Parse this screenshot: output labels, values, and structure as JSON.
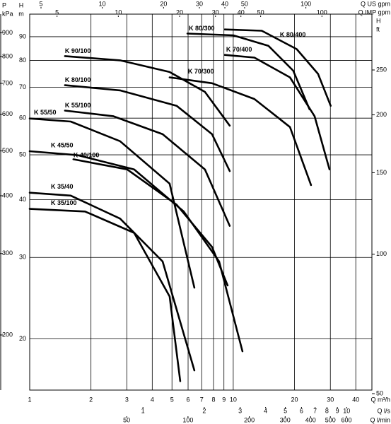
{
  "chart_data": {
    "type": "line",
    "x_label": "Q m³/h",
    "y_label": [
      "H",
      "m"
    ],
    "log_x": true,
    "log_y": true,
    "grid": true,
    "xlim": [
      1,
      48
    ],
    "ylim": [
      15.5,
      100.7
    ],
    "xticks": [
      1,
      2,
      3,
      4,
      5,
      6,
      7,
      8,
      9,
      10,
      20,
      30,
      40
    ],
    "yticks": [
      20,
      30,
      40,
      50,
      60,
      70,
      80,
      90
    ],
    "color": "#000000",
    "series": [
      {
        "name": "K 90/100",
        "x": [
          1.49,
          2.78,
          4.87,
          7.26,
          9.61
        ],
        "values": [
          81.7,
          80.0,
          75.5,
          68.4,
          57.8
        ]
      },
      {
        "name": "K 80/100",
        "x": [
          1.49,
          2.78,
          5.27,
          7.87,
          9.61
        ],
        "values": [
          70.7,
          68.9,
          63.8,
          55.4,
          46.1
        ]
      },
      {
        "name": "K 55/100",
        "x": [
          1.49,
          2.57,
          4.5,
          7.26,
          9.61
        ],
        "values": [
          62.3,
          60.6,
          55.4,
          46.5,
          35.1
        ]
      },
      {
        "name": "K 55/50",
        "x": [
          1,
          1.59,
          2.78,
          4.87,
          6.44
        ],
        "values": [
          59.9,
          59.0,
          53.5,
          43.3,
          25.8
        ]
      },
      {
        "name": "K 45/50",
        "x": [
          1,
          1.72,
          3.26,
          5.71,
          8.52,
          11.1
        ],
        "values": [
          50.9,
          49.9,
          46.5,
          37.7,
          29.4,
          18.8
        ]
      },
      {
        "name": "K 40/100",
        "x": [
          1.64,
          3.01,
          5.27,
          7.87,
          9.38
        ],
        "values": [
          48.9,
          46.5,
          39.0,
          31.6,
          26.1
        ]
      },
      {
        "name": "K 35/40",
        "x": [
          1,
          1.59,
          2.78,
          4.5,
          6.44
        ],
        "values": [
          41.4,
          40.8,
          36.4,
          29.4,
          17.1
        ]
      },
      {
        "name": "K 35/100",
        "x": [
          1,
          1.87,
          3.26,
          4.87,
          5.49
        ],
        "values": [
          38.2,
          37.7,
          33.9,
          24.7,
          16.2
        ]
      },
      {
        "name": "K 80/300",
        "x": [
          5.95,
          10,
          14.9,
          19.7,
          23.7
        ],
        "values": [
          91.4,
          90.6,
          86.0,
          76.0,
          62.7
        ]
      },
      {
        "name": "K 80/400",
        "x": [
          9.08,
          13.8,
          20.5,
          26.1,
          30.1
        ],
        "values": [
          93.3,
          92.7,
          84.6,
          74.8,
          63.8
        ]
      },
      {
        "name": "K 70/400",
        "x": [
          9.08,
          12.7,
          19.0,
          25.1,
          29.7
        ],
        "values": [
          82.2,
          81.1,
          73.5,
          60.6,
          46.5
        ]
      },
      {
        "name": "K 70/300",
        "x": [
          4.87,
          7.87,
          12.7,
          19.0,
          24.1
        ],
        "values": [
          73.5,
          71.4,
          66.0,
          57.4,
          43.0
        ]
      }
    ],
    "secondary_x_axes": [
      {
        "label": "Q US gpm",
        "position": "top",
        "lim": [
          4.4,
          211
        ],
        "ticks": [
          5,
          10,
          20,
          30,
          40,
          50,
          100
        ]
      },
      {
        "label": "Q IMP gpm",
        "position": "top",
        "lim": [
          3.67,
          176
        ],
        "ticks": [
          5,
          10,
          20,
          30,
          40,
          50,
          100
        ]
      },
      {
        "label": "Q l/s",
        "position": "bottom",
        "lim": [
          0.278,
          13.3
        ],
        "ticks": [
          1,
          2,
          3,
          4,
          5,
          6,
          7,
          8,
          9,
          10
        ]
      },
      {
        "label": "Q l/min",
        "position": "bottom",
        "lim": [
          16.7,
          800
        ],
        "ticks": [
          50,
          100,
          200,
          300,
          400,
          500,
          600
        ]
      }
    ],
    "secondary_y_axes": [
      {
        "label": [
          "P",
          "kPa"
        ],
        "side": "left",
        "lim": [
          152,
          988
        ],
        "ticks": [
          200,
          300,
          400,
          500,
          600,
          700,
          800,
          900
        ]
      },
      {
        "label": [
          "H",
          "ft"
        ],
        "side": "right",
        "lim": [
          50.9,
          330
        ],
        "ticks": [
          50,
          100,
          150,
          200,
          250
        ]
      }
    ]
  }
}
